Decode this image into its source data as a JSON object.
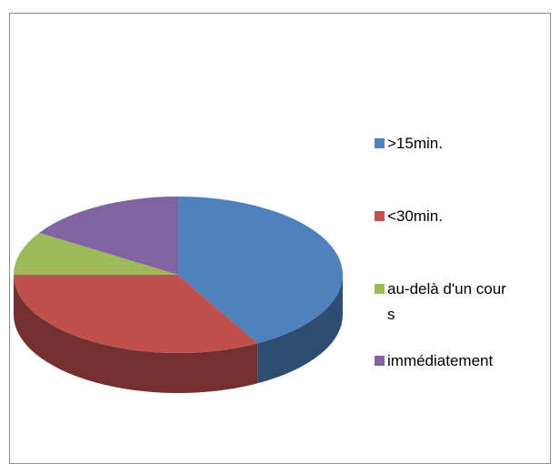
{
  "chart_data": {
    "type": "pie",
    "categories": [
      ">15min.",
      "<30min.",
      "au-delà d'un cours",
      "immédiatement"
    ],
    "values": [
      42,
      33,
      9,
      16
    ],
    "colors": [
      "#4f81bd",
      "#c0504d",
      "#9bbb59",
      "#8064a2"
    ],
    "legend": "right"
  }
}
